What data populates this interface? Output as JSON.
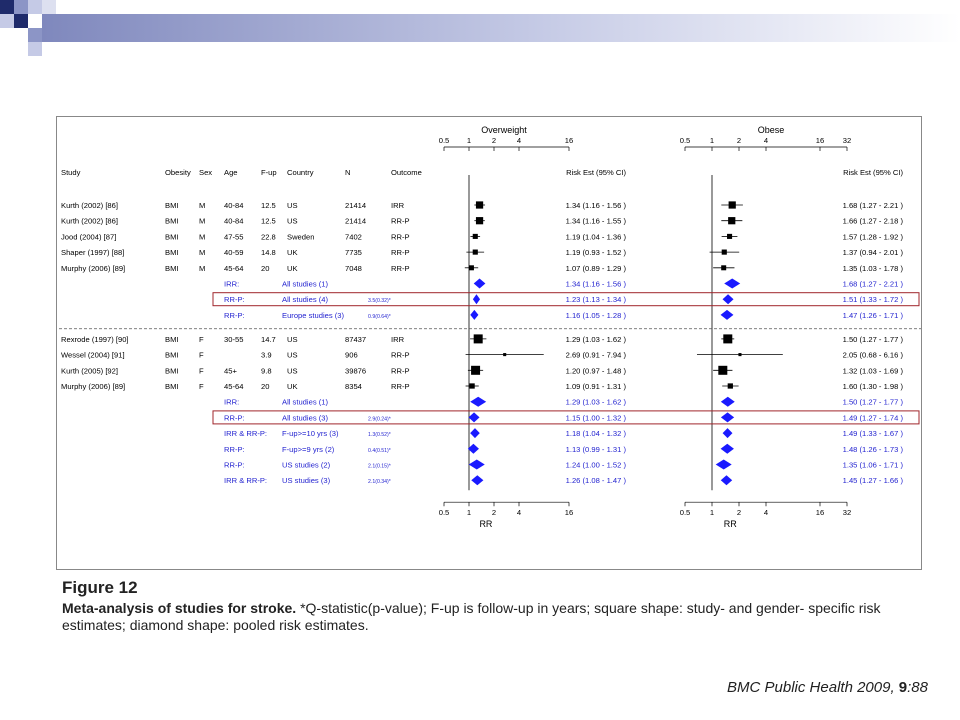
{
  "decor": {
    "colors": {
      "navy": "#1f2b6b",
      "lavender": "#8c95c6",
      "bar_start": "#8c95c6",
      "bar_end": "#ffffff"
    }
  },
  "figure": {
    "columns": {
      "study": "Study",
      "obesity": "Obesity",
      "sex": "Sex",
      "age": "Age",
      "fup": "F-up",
      "country": "Country",
      "n": "N",
      "outcome": "Outcome",
      "risk_left": "Risk Est (95% CI)",
      "risk_right": "Risk Est (95% CI)"
    },
    "colors": {
      "study_text": "#000000",
      "pooled_text": "#1f1fcf",
      "highlight": "#a0252b",
      "marker_study": "#000000",
      "marker_pooled": "#1a1aff"
    }
  },
  "chart_data": {
    "type": "forest",
    "x_scale": "log",
    "panels": [
      {
        "title": "Overweight",
        "xticks": [
          0.5,
          1,
          2,
          4,
          16
        ],
        "tick_labels": [
          "0.5",
          "1",
          "2",
          "4",
          "16"
        ],
        "xlim": [
          0.5,
          16
        ],
        "xlabel": "RR",
        "reference": 1
      },
      {
        "title": "Obese",
        "xticks": [
          0.5,
          1,
          2,
          4,
          16,
          32
        ],
        "tick_labels": [
          "0.5",
          "1",
          "2",
          "4",
          "16",
          "32"
        ],
        "xlim": [
          0.5,
          32
        ],
        "xlabel": "RR",
        "reference": 1
      }
    ],
    "rows": [
      {
        "kind": "study",
        "study": "Kurth (2002) [86]",
        "obesity": "BMI",
        "sex": "M",
        "age": "40-84",
        "fup": "12.5",
        "country": "US",
        "n": "21414",
        "outcome": "IRR",
        "ow": [
          1.34,
          1.16,
          1.56
        ],
        "ow_label": "1.34 (1.16 - 1.56 )",
        "ob": [
          1.68,
          1.27,
          2.21
        ],
        "ob_label": "1.68 (1.27 - 2.21 )"
      },
      {
        "kind": "study",
        "study": "Kurth (2002) [86]",
        "obesity": "BMI",
        "sex": "M",
        "age": "40-84",
        "fup": "12.5",
        "country": "US",
        "n": "21414",
        "outcome": "RR-P",
        "ow": [
          1.34,
          1.16,
          1.55
        ],
        "ow_label": "1.34 (1.16 - 1.55 )",
        "ob": [
          1.66,
          1.27,
          2.18
        ],
        "ob_label": "1.66 (1.27 - 2.18 )"
      },
      {
        "kind": "study",
        "study": "Jood (2004) [87]",
        "obesity": "BMI",
        "sex": "M",
        "age": "47-55",
        "fup": "22.8",
        "country": "Sweden",
        "n": "7402",
        "outcome": "RR-P",
        "ow": [
          1.19,
          1.04,
          1.36
        ],
        "ow_label": "1.19 (1.04 - 1.36 )",
        "ob": [
          1.57,
          1.28,
          1.92
        ],
        "ob_label": "1.57 (1.28 - 1.92 )"
      },
      {
        "kind": "study",
        "study": "Shaper (1997) [88]",
        "obesity": "BMI",
        "sex": "M",
        "age": "40-59",
        "fup": "14.8",
        "country": "UK",
        "n": "7735",
        "outcome": "RR-P",
        "ow": [
          1.19,
          0.93,
          1.52
        ],
        "ow_label": "1.19 (0.93 - 1.52 )",
        "ob": [
          1.37,
          0.94,
          2.01
        ],
        "ob_label": "1.37 (0.94 - 2.01 )"
      },
      {
        "kind": "study",
        "study": "Murphy (2006) [89]",
        "obesity": "BMI",
        "sex": "M",
        "age": "45-64",
        "fup": "20",
        "country": "UK",
        "n": "7048",
        "outcome": "RR-P",
        "ow": [
          1.07,
          0.89,
          1.29
        ],
        "ow_label": "1.07 (0.89 - 1.29 )",
        "ob": [
          1.35,
          1.03,
          1.78
        ],
        "ob_label": "1.35 (1.03 - 1.78 )"
      },
      {
        "kind": "pooled",
        "type_label": "IRR:",
        "desc": "All studies (1)",
        "q": "",
        "ow": [
          1.34,
          1.16,
          1.56
        ],
        "ow_label": "1.34 (1.16 - 1.56 )",
        "ob": [
          1.68,
          1.27,
          2.21
        ],
        "ob_label": "1.68 (1.27 - 2.21 )"
      },
      {
        "kind": "pooled",
        "type_label": "RR-P:",
        "desc": "All studies (4)",
        "q": "3.5(0.32)*",
        "highlight": true,
        "ow": [
          1.23,
          1.13,
          1.34
        ],
        "ow_label": "1.23 (1.13 - 1.34 )",
        "ob": [
          1.51,
          1.33,
          1.72
        ],
        "ob_label": "1.51 (1.33 - 1.72 )"
      },
      {
        "kind": "pooled",
        "type_label": "RR-P:",
        "desc": "Europe studies (3)",
        "q": "0.9(0.64)*",
        "ow": [
          1.16,
          1.05,
          1.28
        ],
        "ow_label": "1.16 (1.05 - 1.28 )",
        "ob": [
          1.47,
          1.26,
          1.71
        ],
        "ob_label": "1.47 (1.26 - 1.71 )"
      },
      {
        "kind": "separator"
      },
      {
        "kind": "study",
        "study": "Rexrode (1997) [90]",
        "obesity": "BMI",
        "sex": "F",
        "age": "30-55",
        "fup": "14.7",
        "country": "US",
        "n": "87437",
        "outcome": "IRR",
        "ow": [
          1.29,
          1.03,
          1.62
        ],
        "ow_label": "1.29 (1.03 - 1.62 )",
        "ob": [
          1.5,
          1.27,
          1.77
        ],
        "ob_label": "1.50 (1.27 - 1.77 )"
      },
      {
        "kind": "study",
        "study": "Wessel (2004) [91]",
        "obesity": "BMI",
        "sex": "F",
        "age": "",
        "fup": "3.9",
        "country": "US",
        "n": "906",
        "outcome": "RR-P",
        "ow": [
          2.69,
          0.91,
          7.94
        ],
        "ow_label": "2.69 (0.91 - 7.94 )",
        "ob": [
          2.05,
          0.68,
          6.16
        ],
        "ob_label": "2.05 (0.68 - 6.16 )"
      },
      {
        "kind": "study",
        "study": "Kurth (2005) [92]",
        "obesity": "BMI",
        "sex": "F",
        "age": "45+",
        "fup": "9.8",
        "country": "US",
        "n": "39876",
        "outcome": "RR-P",
        "ow": [
          1.2,
          0.97,
          1.48
        ],
        "ow_label": "1.20 (0.97 - 1.48 )",
        "ob": [
          1.32,
          1.03,
          1.69
        ],
        "ob_label": "1.32 (1.03 - 1.69 )"
      },
      {
        "kind": "study",
        "study": "Murphy (2006) [89]",
        "obesity": "BMI",
        "sex": "F",
        "age": "45-64",
        "fup": "20",
        "country": "UK",
        "n": "8354",
        "outcome": "RR-P",
        "ow": [
          1.09,
          0.91,
          1.31
        ],
        "ow_label": "1.09 (0.91 - 1.31 )",
        "ob": [
          1.6,
          1.3,
          1.98
        ],
        "ob_label": "1.60 (1.30 - 1.98 )"
      },
      {
        "kind": "pooled",
        "type_label": "IRR:",
        "desc": "All studies (1)",
        "q": "",
        "ow": [
          1.29,
          1.03,
          1.62
        ],
        "ow_label": "1.29 (1.03 - 1.62 )",
        "ob": [
          1.5,
          1.27,
          1.77
        ],
        "ob_label": "1.50 (1.27 - 1.77 )"
      },
      {
        "kind": "pooled",
        "type_label": "RR-P:",
        "desc": "All studies (3)",
        "q": "2.9(0.24)*",
        "highlight": true,
        "ow": [
          1.15,
          1.0,
          1.32
        ],
        "ow_label": "1.15 (1.00 - 1.32 )",
        "ob": [
          1.49,
          1.27,
          1.74
        ],
        "ob_label": "1.49 (1.27 - 1.74 )"
      },
      {
        "kind": "pooled",
        "type_label": "IRR & RR-P:",
        "desc": "F-up>=10 yrs (3)",
        "q": "1.3(0.52)*",
        "ow": [
          1.18,
          1.04,
          1.32
        ],
        "ow_label": "1.18 (1.04 - 1.32 )",
        "ob": [
          1.49,
          1.33,
          1.67
        ],
        "ob_label": "1.49 (1.33 - 1.67 )"
      },
      {
        "kind": "pooled",
        "type_label": "RR-P:",
        "desc": "F-up>=9 yrs (2)",
        "q": "0.4(0.51)*",
        "ow": [
          1.13,
          0.99,
          1.31
        ],
        "ow_label": "1.13 (0.99 - 1.31 )",
        "ob": [
          1.48,
          1.26,
          1.73
        ],
        "ob_label": "1.48 (1.26 - 1.73 )"
      },
      {
        "kind": "pooled",
        "type_label": "RR-P:",
        "desc": "US studies (2)",
        "q": "2.1(0.15)*",
        "ow": [
          1.24,
          1.0,
          1.52
        ],
        "ow_label": "1.24 (1.00 - 1.52 )",
        "ob": [
          1.35,
          1.06,
          1.71
        ],
        "ob_label": "1.35 (1.06 - 1.71 )"
      },
      {
        "kind": "pooled",
        "type_label": "IRR & RR-P:",
        "desc": "US studies (3)",
        "q": "2.1(0.34)*",
        "ow": [
          1.26,
          1.08,
          1.47
        ],
        "ow_label": "1.26 (1.08 - 1.47 )",
        "ob": [
          1.45,
          1.27,
          1.66
        ],
        "ob_label": "1.45 (1.27 - 1.66 )"
      }
    ]
  },
  "caption": {
    "figure_label": "Figure 12",
    "title_bold": "Meta-analysis of studies for stroke.",
    "text": " *Q-statistic(p-value); F-up is follow-up in years; square shape: study- and gender- specific risk estimates; diamond shape: pooled risk estimates."
  },
  "citation": {
    "journal": "BMC Public Health",
    "year": " 2009, ",
    "volume": "9",
    "page": ":88"
  }
}
